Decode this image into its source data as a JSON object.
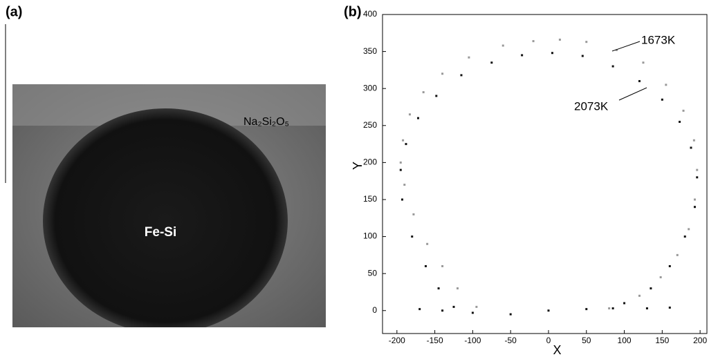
{
  "image": {
    "panel_label": "(a)",
    "center_label": "Fe-Si",
    "corner_label": "Na₂Si₂O₅"
  },
  "chart_data": {
    "type": "scatter",
    "panel_label": "(b)",
    "x_label": "X",
    "y_label": "Y",
    "xlim": [
      -219,
      209
    ],
    "ylim": [
      -31,
      400
    ],
    "xticks": [
      -200,
      -150,
      -100,
      -50,
      0,
      50,
      100,
      150,
      200
    ],
    "yticks": [
      0,
      50,
      100,
      150,
      200,
      250,
      300,
      350,
      400
    ],
    "annotations": [
      "1673K",
      "2073K"
    ],
    "series": [
      {
        "name": "1673K",
        "color": "#999999",
        "x": [
          -95,
          -120,
          -140,
          -160,
          -178,
          -190,
          -195,
          -192,
          -183,
          -165,
          -140,
          -105,
          -60,
          -20,
          15,
          50,
          90,
          125,
          155,
          178,
          192,
          196,
          193,
          185,
          170,
          148,
          120,
          80
        ],
        "values": [
          5,
          30,
          60,
          90,
          130,
          170,
          200,
          230,
          265,
          295,
          320,
          342,
          358,
          364,
          366,
          363,
          352,
          335,
          305,
          270,
          230,
          190,
          150,
          110,
          75,
          45,
          20,
          3
        ]
      },
      {
        "name": "2073K",
        "color": "#111111",
        "x": [
          -125,
          -145,
          -162,
          -180,
          -193,
          -195,
          -188,
          -172,
          -148,
          -115,
          -75,
          -35,
          5,
          45,
          85,
          120,
          150,
          173,
          188,
          196,
          193,
          180,
          160,
          135,
          100,
          85,
          -170,
          -140,
          -100,
          -50,
          0,
          50,
          130,
          160
        ],
        "values": [
          5,
          30,
          60,
          100,
          150,
          190,
          225,
          260,
          290,
          318,
          335,
          345,
          348,
          344,
          330,
          310,
          285,
          255,
          220,
          180,
          140,
          100,
          60,
          30,
          10,
          3,
          2,
          0,
          -3,
          -5,
          0,
          2,
          3,
          4
        ]
      }
    ]
  }
}
